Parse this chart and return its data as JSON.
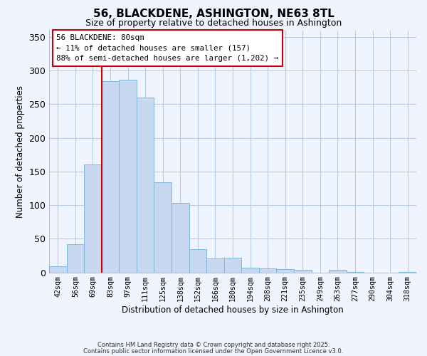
{
  "title": "56, BLACKDENE, ASHINGTON, NE63 8TL",
  "subtitle": "Size of property relative to detached houses in Ashington",
  "xlabel": "Distribution of detached houses by size in Ashington",
  "ylabel": "Number of detached properties",
  "bar_labels": [
    "42sqm",
    "56sqm",
    "69sqm",
    "83sqm",
    "97sqm",
    "111sqm",
    "125sqm",
    "138sqm",
    "152sqm",
    "166sqm",
    "180sqm",
    "194sqm",
    "208sqm",
    "221sqm",
    "235sqm",
    "249sqm",
    "263sqm",
    "277sqm",
    "290sqm",
    "304sqm",
    "318sqm"
  ],
  "bar_heights": [
    9,
    42,
    160,
    284,
    286,
    260,
    134,
    103,
    34,
    21,
    22,
    7,
    6,
    5,
    4,
    0,
    4,
    1,
    0,
    0,
    1
  ],
  "bar_color": "#c8d8f0",
  "bar_edge_color": "#7fb8d8",
  "vline_color": "#cc0000",
  "annotation_title": "56 BLACKDENE: 80sqm",
  "annotation_line1": "← 11% of detached houses are smaller (157)",
  "annotation_line2": "88% of semi-detached houses are larger (1,202) →",
  "annotation_box_color": "#ffffff",
  "annotation_box_edge": "#cc0000",
  "ylim": [
    0,
    360
  ],
  "yticks": [
    0,
    50,
    100,
    150,
    200,
    250,
    300,
    350
  ],
  "footer1": "Contains HM Land Registry data © Crown copyright and database right 2025.",
  "footer2": "Contains public sector information licensed under the Open Government Licence v3.0.",
  "background_color": "#f0f4ff",
  "grid_color": "#b8cce4"
}
